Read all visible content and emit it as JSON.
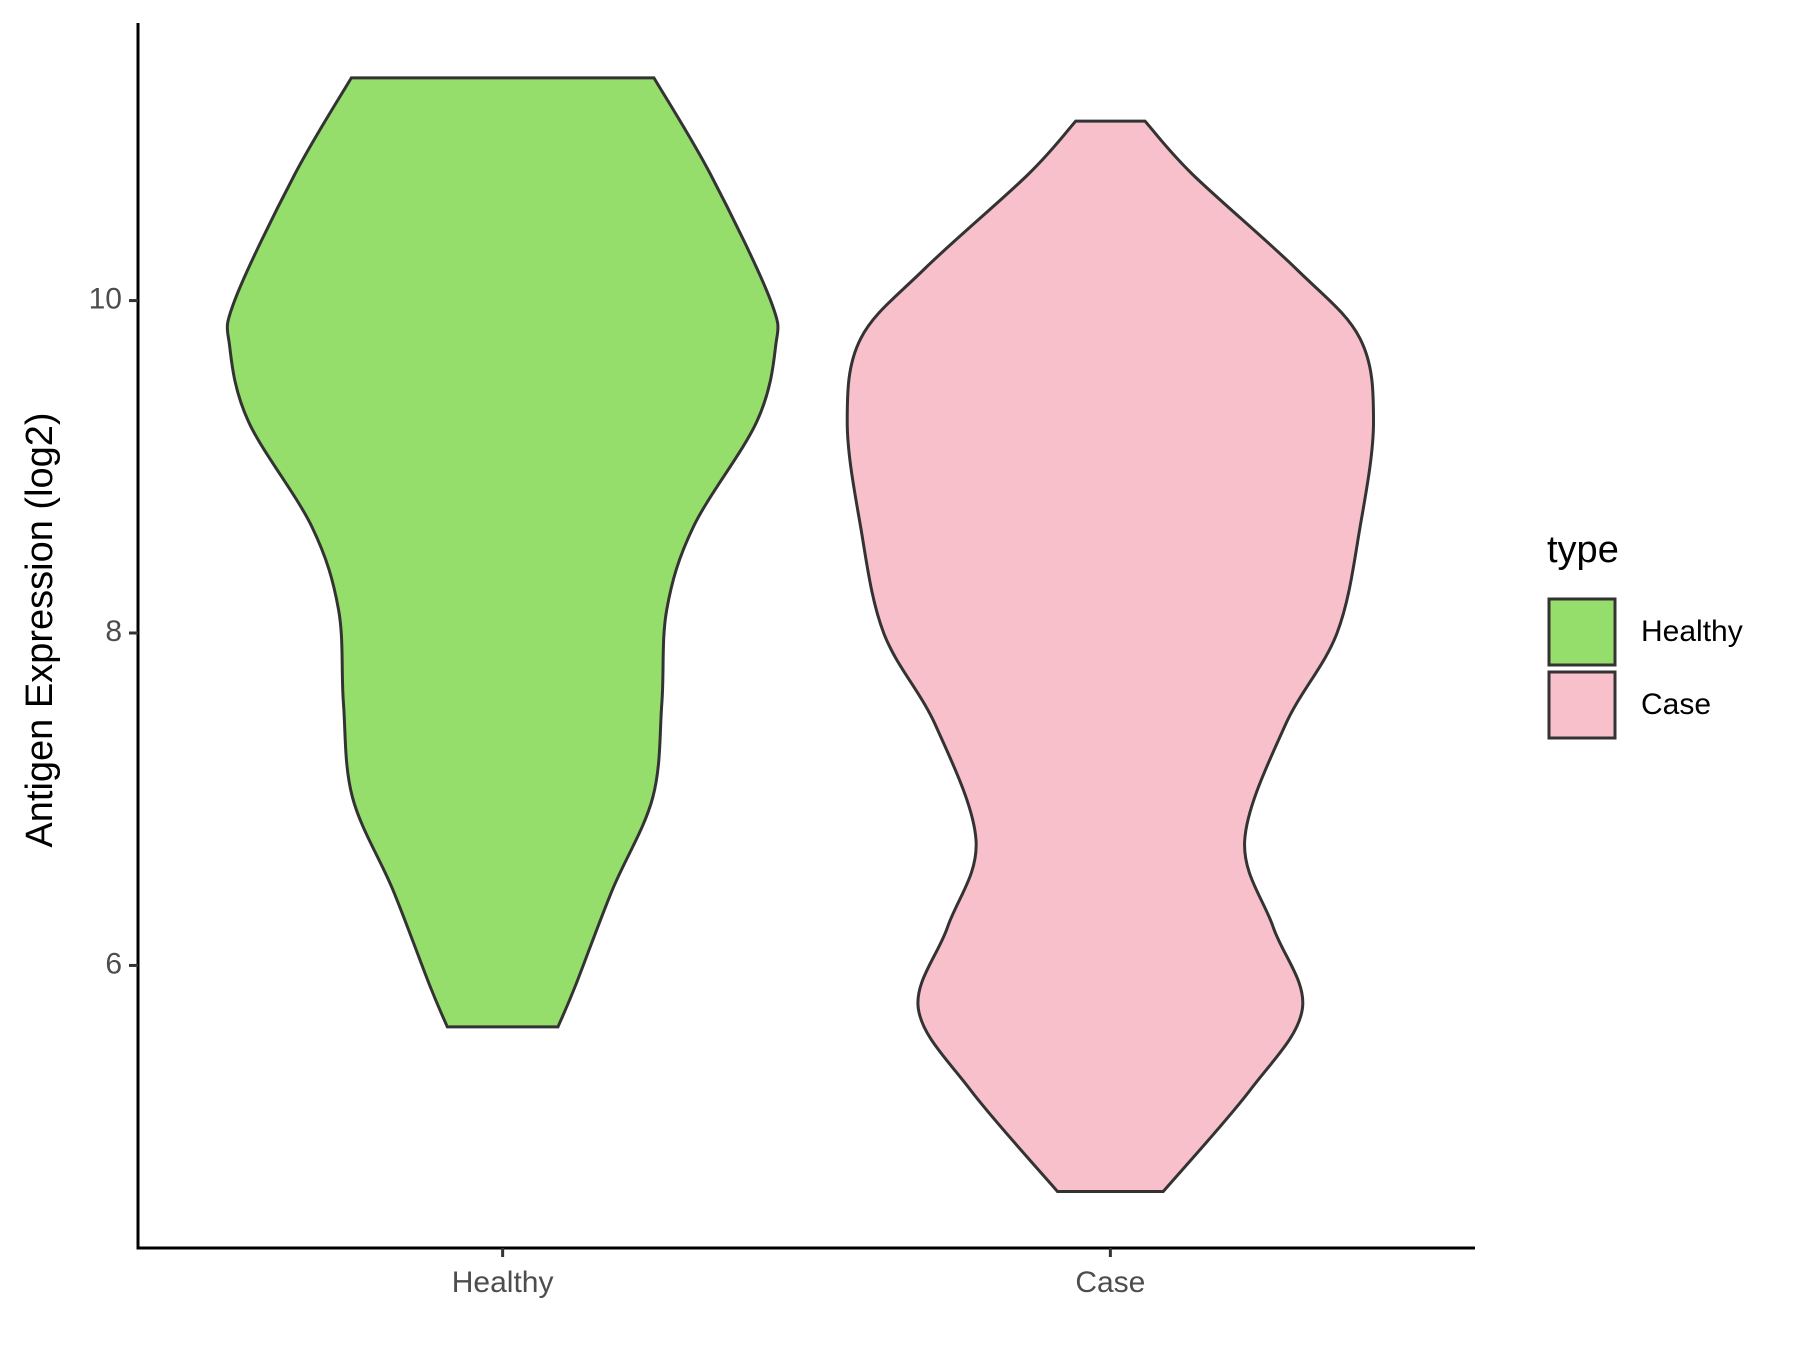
{
  "chart_data": {
    "type": "violin",
    "ylabel": "Antigen Expression (log2)",
    "categories": [
      "Healthy",
      "Case"
    ],
    "series": [
      {
        "name": "Healthy",
        "color": "#95de6b",
        "y": [
          11.34,
          10.76,
          10.0,
          9.72,
          9.27,
          8.64,
          8.14,
          7.58,
          7.01,
          6.45,
          5.88,
          5.63
        ],
        "width": [
          0.249,
          0.342,
          0.441,
          0.449,
          0.418,
          0.314,
          0.27,
          0.262,
          0.247,
          0.18,
          0.12,
          0.091
        ]
      },
      {
        "name": "Case",
        "color": "#f8c0cb",
        "y": [
          11.08,
          10.76,
          10.19,
          9.77,
          9.27,
          8.64,
          8.0,
          7.44,
          6.75,
          6.23,
          5.74,
          5.25,
          4.64
        ],
        "width": [
          0.057,
          0.135,
          0.306,
          0.411,
          0.433,
          0.411,
          0.373,
          0.287,
          0.221,
          0.268,
          0.316,
          0.23,
          0.087
        ]
      }
    ],
    "ylim": [
      4.3,
      11.67
    ],
    "yticks": [
      6,
      8,
      10
    ],
    "legend_title": "type",
    "legend_position": "right"
  }
}
